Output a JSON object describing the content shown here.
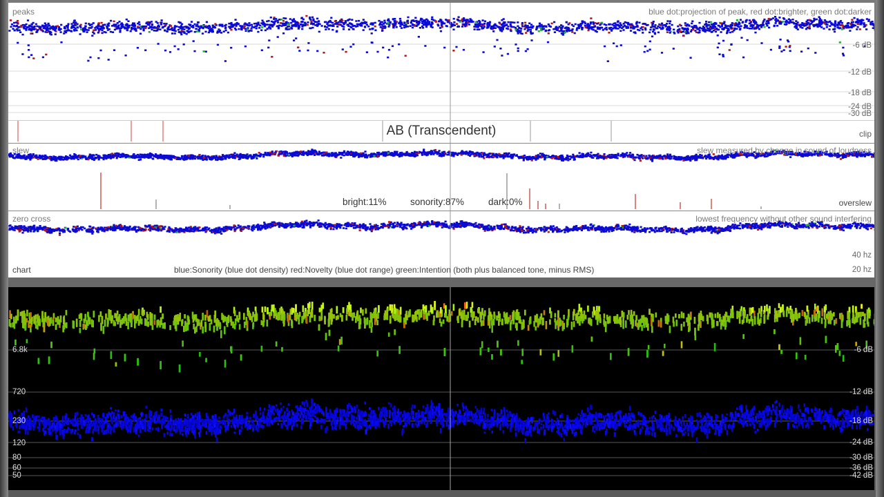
{
  "colors": {
    "blue": "#0a0ad2",
    "red": "#b41818",
    "green": "#20b030",
    "panel_bg": "#ffffff",
    "spectrum_bg": "#000000"
  },
  "peaks": {
    "left_label": "peaks",
    "right_label": "blue dot:projection of peak, red dot:brighter, green dot:darker",
    "db_labels": [
      "-6 dB",
      "-12 dB",
      "-18 dB",
      "-24 dB",
      "-30 dB"
    ]
  },
  "clip": {
    "title": "AB (Transcendent)",
    "right_label": "clip"
  },
  "slew": {
    "left_label": "slew",
    "right_label": "slew measured by change in sound of loudness",
    "stats": {
      "bright": "bright:11%",
      "sonority": "sonority:87%",
      "dark": "dark:0%"
    },
    "bottom_right_label": "overslew"
  },
  "zero": {
    "left_label": "zero cross",
    "right_label": "lowest frequency without other sound interfering",
    "hz_labels": [
      "40 hz",
      "20 hz"
    ],
    "chart_label": "chart",
    "legend": "blue:Sonority (blue dot density)  red:Novelty (blue dot range)  green:Intention (both plus balanced tone, minus RMS)"
  },
  "spectrum": {
    "freq_labels": [
      "6.8k",
      "720",
      "230",
      "120",
      "80",
      "60",
      "50"
    ],
    "db_labels": [
      "-6 dB",
      "-12 dB",
      "-18 dB",
      "-24 dB",
      "-30 dB",
      "-36 dB",
      "-42 dB"
    ]
  }
}
